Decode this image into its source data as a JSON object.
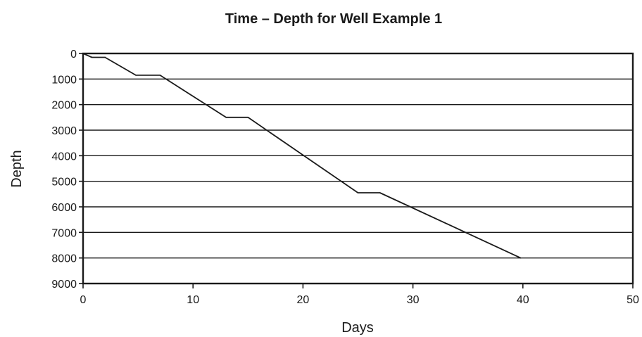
{
  "chart_data": {
    "type": "line",
    "title": "Time – Depth for Well Example 1",
    "xlabel": "Days",
    "ylabel": "Depth",
    "xlim": [
      0,
      50
    ],
    "ylim": [
      0,
      9000
    ],
    "y_inverted": true,
    "grid": "horizontal",
    "x_ticks": [
      0,
      10,
      20,
      30,
      40,
      50
    ],
    "y_ticks": [
      0,
      1000,
      2000,
      3000,
      4000,
      5000,
      6000,
      7000,
      8000,
      9000
    ],
    "series": [
      {
        "x": [
          0,
          0.8,
          2,
          4.8,
          7,
          13,
          15,
          25,
          27,
          39.8
        ],
        "y": [
          0,
          150,
          150,
          850,
          850,
          2500,
          2500,
          5450,
          5450,
          8000
        ]
      }
    ]
  },
  "colors": {
    "line": "#1a1a1a",
    "grid": "#1a1a1a",
    "text": "#1a1a1a"
  }
}
